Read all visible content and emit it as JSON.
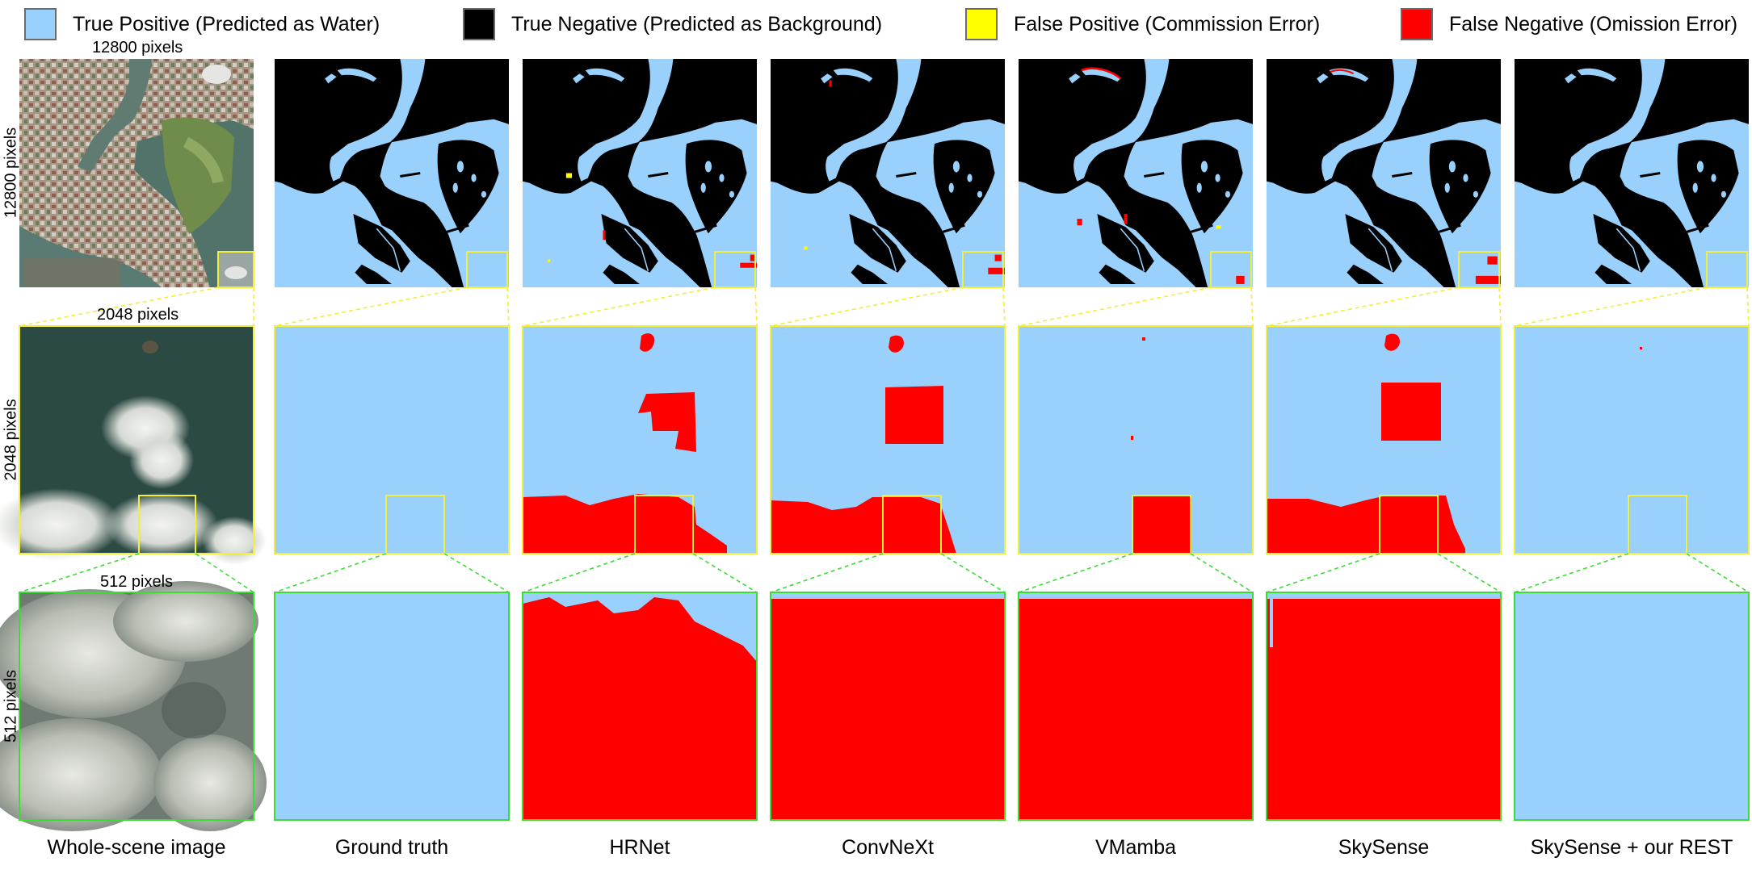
{
  "legend": [
    {
      "label": "True Positive (Predicted as Water)",
      "color": "#99d1fc"
    },
    {
      "label": "True Negative (Predicted as Background)",
      "color": "#000000"
    },
    {
      "label": "False Positive (Commission Error)",
      "color": "#ffff00"
    },
    {
      "label": "False Negative (Omission Error)",
      "color": "#ff0000"
    }
  ],
  "scale_labels": {
    "row1": "12800 pixels",
    "row2": "2048 pixels",
    "row3": "512 pixels"
  },
  "columns": [
    "Whole-scene image",
    "Ground truth",
    "HRNet",
    "ConvNeXt",
    "VMamba",
    "SkySense",
    "SkySense + our REST"
  ],
  "colors": {
    "water": "#99d1fc",
    "background": "#000000",
    "omission": "#ff0000",
    "commission": "#ffff00",
    "zoom1": "#f2ee3a",
    "zoom2": "#3ddc35",
    "ocean": "#2c4a44",
    "cloud": "#e9ebe7"
  },
  "icons": [
    "satellite-image",
    "segmentation-map"
  ]
}
